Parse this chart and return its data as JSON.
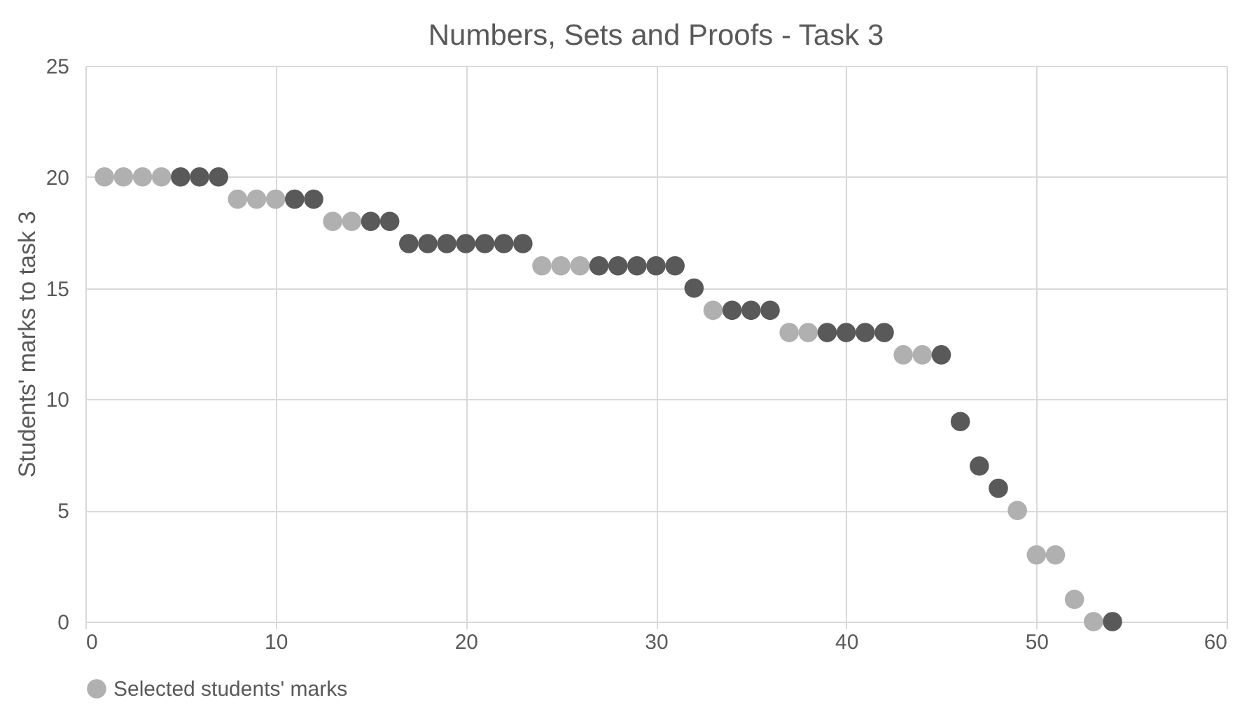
{
  "chart_data": {
    "type": "scatter",
    "title": "Numbers, Sets and Proofs - Task 3",
    "ylabel": "Students' marks to task 3",
    "xlim": [
      0,
      60
    ],
    "xticks": [
      0,
      10,
      20,
      30,
      40,
      50,
      60
    ],
    "ylim": [
      0,
      25
    ],
    "yticks": [
      0,
      5,
      10,
      15,
      20,
      25
    ],
    "grid": true,
    "legend": "bottom",
    "marker": "circle",
    "series": [
      {
        "name": "Selected students' marks",
        "color": "#b0b0b0",
        "x": [
          1,
          2,
          3,
          4,
          8,
          9,
          10,
          13,
          14,
          24,
          25,
          26,
          33,
          37,
          38,
          43,
          44,
          49,
          50,
          51,
          52,
          53
        ],
        "values": [
          20,
          20,
          20,
          20,
          19,
          19,
          19,
          18,
          18,
          16,
          16,
          16,
          14,
          13,
          13,
          12,
          12,
          5,
          3,
          3,
          1,
          0
        ]
      },
      {
        "color": "#595959",
        "x": [
          5,
          6,
          7,
          11,
          12,
          15,
          16,
          17,
          18,
          19,
          20,
          21,
          22,
          23,
          27,
          28,
          29,
          30,
          31,
          32,
          34,
          35,
          36,
          39,
          40,
          41,
          42,
          45,
          46,
          47,
          48,
          54
        ],
        "values": [
          20,
          20,
          20,
          19,
          19,
          18,
          18,
          17,
          17,
          17,
          17,
          17,
          17,
          17,
          16,
          16,
          16,
          16,
          16,
          15,
          14,
          14,
          14,
          13,
          13,
          13,
          13,
          12,
          9,
          7,
          6,
          0
        ]
      }
    ]
  }
}
